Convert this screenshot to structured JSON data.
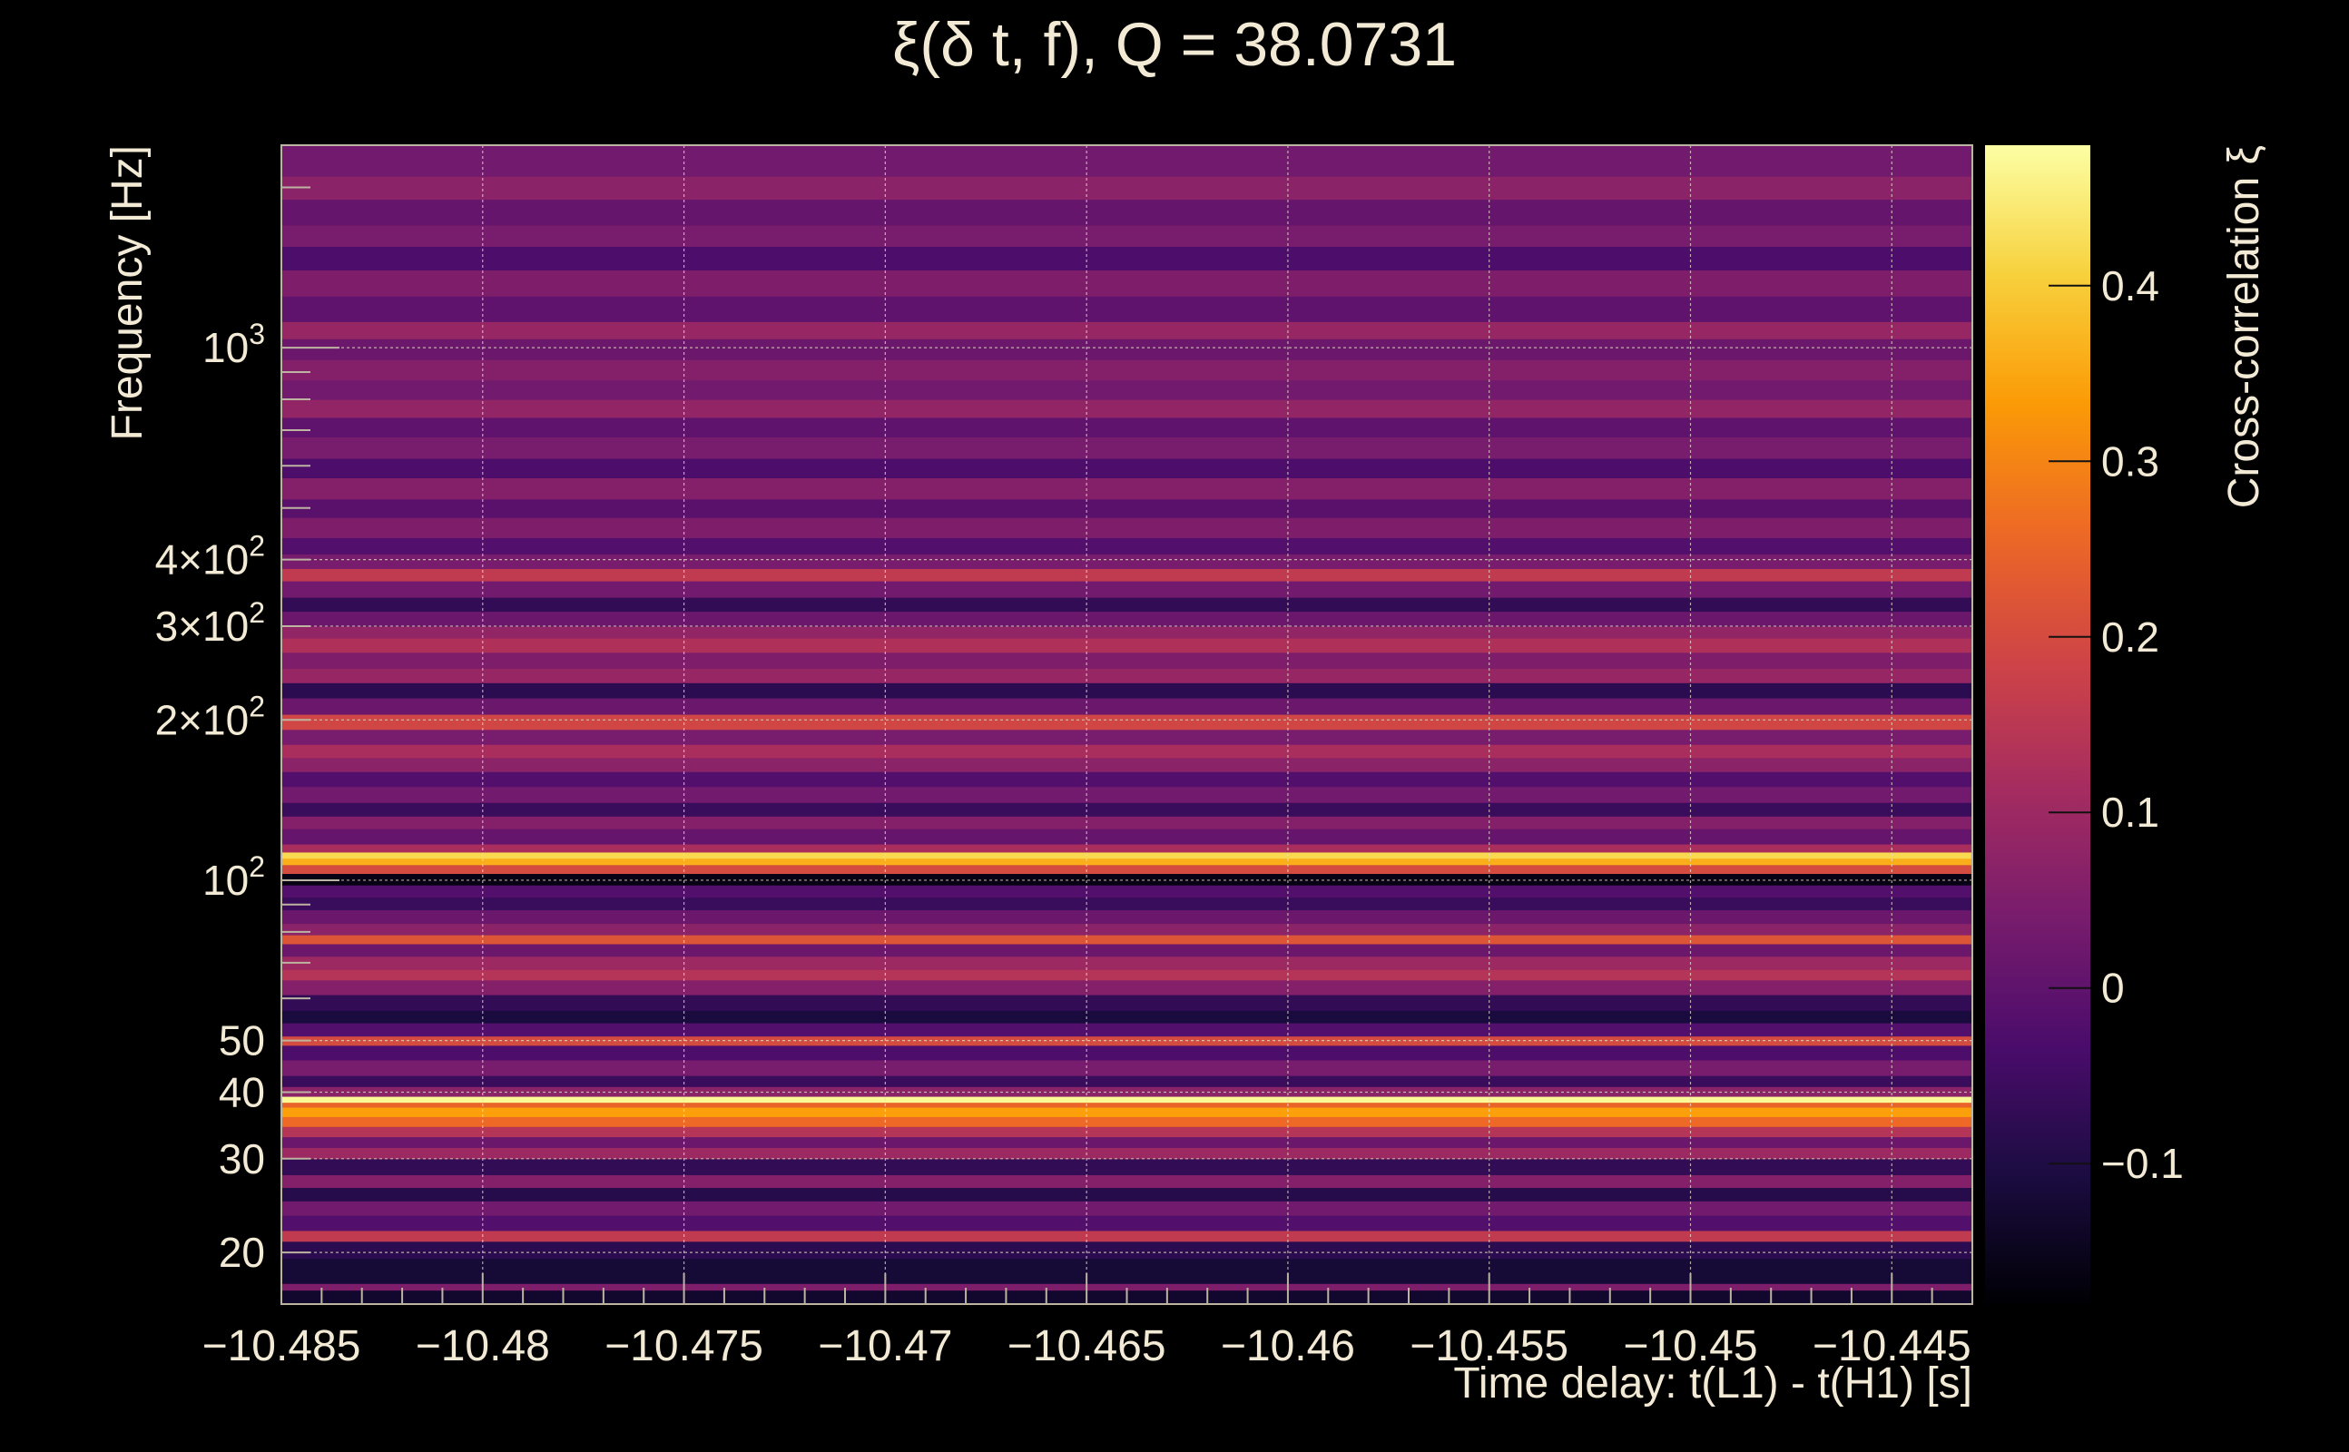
{
  "chart_data": {
    "type": "heatmap",
    "title": "ξ(δ t, f), Q = 38.0731",
    "xlabel": "Time delay: t(L1) - t(H1) [s]",
    "ylabel": "Frequency [Hz]",
    "colorbar_label": "Cross-correlation ξ",
    "xlim": [
      -10.485,
      -10.443
    ],
    "ylim": [
      16,
      2400
    ],
    "y_scale": "log",
    "grid": true,
    "colormap": [
      "#000004",
      "#1b0c41",
      "#4a0c6b",
      "#781c6d",
      "#a52c60",
      "#cf4446",
      "#ed6925",
      "#fb9b06",
      "#f7d13d",
      "#fcffa4"
    ],
    "x_ticks": [
      {
        "value": -10.485,
        "label": "−10.485"
      },
      {
        "value": -10.48,
        "label": "−10.48"
      },
      {
        "value": -10.475,
        "label": "−10.475"
      },
      {
        "value": -10.47,
        "label": "−10.47"
      },
      {
        "value": -10.465,
        "label": "−10.465"
      },
      {
        "value": -10.46,
        "label": "−10.46"
      },
      {
        "value": -10.455,
        "label": "−10.455"
      },
      {
        "value": -10.45,
        "label": "−10.45"
      },
      {
        "value": -10.445,
        "label": "−10.445"
      }
    ],
    "y_ticks": [
      {
        "value": 20,
        "label": "20"
      },
      {
        "value": 30,
        "label": "30"
      },
      {
        "value": 40,
        "label": "40"
      },
      {
        "value": 50,
        "label": "50"
      },
      {
        "value": 100,
        "base": "10",
        "exp": "2"
      },
      {
        "value": 200,
        "base": "2×10",
        "exp": "2"
      },
      {
        "value": 300,
        "base": "3×10",
        "exp": "2"
      },
      {
        "value": 400,
        "base": "4×10",
        "exp": "2"
      },
      {
        "value": 1000,
        "base": "10",
        "exp": "3"
      }
    ],
    "colorbar": {
      "range": [
        -0.18,
        0.48
      ],
      "ticks": [
        {
          "value": -0.1,
          "label": "−0.1"
        },
        {
          "value": 0,
          "label": "0"
        },
        {
          "value": 0.1,
          "label": "0.1"
        },
        {
          "value": 0.2,
          "label": "0.2"
        },
        {
          "value": 0.3,
          "label": "0.3"
        },
        {
          "value": 0.4,
          "label": "0.4"
        }
      ]
    },
    "bands": [
      {
        "f_low": 16,
        "f_high": 17,
        "value": -0.13
      },
      {
        "f_low": 17,
        "f_high": 17.5,
        "value": 0.05
      },
      {
        "f_low": 17.5,
        "f_high": 19.5,
        "value": -0.12
      },
      {
        "f_low": 19.5,
        "f_high": 21,
        "value": -0.08
      },
      {
        "f_low": 21,
        "f_high": 22,
        "value": 0.16
      },
      {
        "f_low": 22,
        "f_high": 23.5,
        "value": -0.02
      },
      {
        "f_low": 23.5,
        "f_high": 25,
        "value": 0.03
      },
      {
        "f_low": 25,
        "f_high": 26.5,
        "value": -0.09
      },
      {
        "f_low": 26.5,
        "f_high": 28,
        "value": 0.06
      },
      {
        "f_low": 28,
        "f_high": 30,
        "value": -0.07
      },
      {
        "f_low": 30,
        "f_high": 31.5,
        "value": 0.1
      },
      {
        "f_low": 31.5,
        "f_high": 33,
        "value": 0.02
      },
      {
        "f_low": 33,
        "f_high": 34.5,
        "value": 0.14
      },
      {
        "f_low": 34.5,
        "f_high": 36,
        "value": 0.26
      },
      {
        "f_low": 36,
        "f_high": 37.5,
        "value": 0.34
      },
      {
        "f_low": 37.5,
        "f_high": 38.3,
        "value": 0.25
      },
      {
        "f_low": 38.3,
        "f_high": 39.3,
        "value": 0.47
      },
      {
        "f_low": 39.3,
        "f_high": 41,
        "value": 0.07
      },
      {
        "f_low": 41,
        "f_high": 43,
        "value": -0.06
      },
      {
        "f_low": 43,
        "f_high": 46,
        "value": 0.04
      },
      {
        "f_low": 46,
        "f_high": 49,
        "value": -0.03
      },
      {
        "f_low": 49,
        "f_high": 51,
        "value": 0.2
      },
      {
        "f_low": 51,
        "f_high": 54,
        "value": -0.02
      },
      {
        "f_low": 54,
        "f_high": 57,
        "value": -0.11
      },
      {
        "f_low": 57,
        "f_high": 61,
        "value": -0.07
      },
      {
        "f_low": 61,
        "f_high": 65,
        "value": 0.06
      },
      {
        "f_low": 65,
        "f_high": 68,
        "value": 0.14
      },
      {
        "f_low": 68,
        "f_high": 72,
        "value": 0.1
      },
      {
        "f_low": 72,
        "f_high": 76,
        "value": 0.02
      },
      {
        "f_low": 76,
        "f_high": 79,
        "value": 0.22
      },
      {
        "f_low": 79,
        "f_high": 83,
        "value": 0.07
      },
      {
        "f_low": 83,
        "f_high": 88,
        "value": 0.02
      },
      {
        "f_low": 88,
        "f_high": 93,
        "value": -0.06
      },
      {
        "f_low": 93,
        "f_high": 98,
        "value": -0.02
      },
      {
        "f_low": 98,
        "f_high": 103,
        "value": -0.16
      },
      {
        "f_low": 103,
        "f_high": 107,
        "value": 0.2
      },
      {
        "f_low": 107,
        "f_high": 110,
        "value": 0.36
      },
      {
        "f_low": 110,
        "f_high": 113,
        "value": 0.42
      },
      {
        "f_low": 113,
        "f_high": 117,
        "value": 0.12
      },
      {
        "f_low": 117,
        "f_high": 125,
        "value": 0.01
      },
      {
        "f_low": 125,
        "f_high": 132,
        "value": 0.06
      },
      {
        "f_low": 132,
        "f_high": 140,
        "value": -0.06
      },
      {
        "f_low": 140,
        "f_high": 150,
        "value": 0.03
      },
      {
        "f_low": 150,
        "f_high": 160,
        "value": -0.02
      },
      {
        "f_low": 160,
        "f_high": 170,
        "value": 0.07
      },
      {
        "f_low": 170,
        "f_high": 180,
        "value": 0.12
      },
      {
        "f_low": 180,
        "f_high": 192,
        "value": 0.04
      },
      {
        "f_low": 192,
        "f_high": 205,
        "value": 0.19
      },
      {
        "f_low": 205,
        "f_high": 220,
        "value": 0.02
      },
      {
        "f_low": 220,
        "f_high": 235,
        "value": -0.08
      },
      {
        "f_low": 235,
        "f_high": 250,
        "value": 0.09
      },
      {
        "f_low": 250,
        "f_high": 268,
        "value": 0.05
      },
      {
        "f_low": 268,
        "f_high": 285,
        "value": 0.13
      },
      {
        "f_low": 285,
        "f_high": 300,
        "value": 0.08
      },
      {
        "f_low": 300,
        "f_high": 320,
        "value": 0.02
      },
      {
        "f_low": 320,
        "f_high": 340,
        "value": -0.07
      },
      {
        "f_low": 340,
        "f_high": 365,
        "value": 0.03
      },
      {
        "f_low": 365,
        "f_high": 385,
        "value": 0.16
      },
      {
        "f_low": 385,
        "f_high": 410,
        "value": 0.04
      },
      {
        "f_low": 410,
        "f_high": 440,
        "value": -0.02
      },
      {
        "f_low": 440,
        "f_high": 480,
        "value": 0.05
      },
      {
        "f_low": 480,
        "f_high": 520,
        "value": -0.01
      },
      {
        "f_low": 520,
        "f_high": 570,
        "value": 0.06
      },
      {
        "f_low": 570,
        "f_high": 620,
        "value": -0.03
      },
      {
        "f_low": 620,
        "f_high": 680,
        "value": 0.04
      },
      {
        "f_low": 680,
        "f_high": 740,
        "value": 0.0
      },
      {
        "f_low": 740,
        "f_high": 800,
        "value": 0.08
      },
      {
        "f_low": 800,
        "f_high": 870,
        "value": 0.03
      },
      {
        "f_low": 870,
        "f_high": 950,
        "value": 0.06
      },
      {
        "f_low": 950,
        "f_high": 1040,
        "value": 0.02
      },
      {
        "f_low": 1040,
        "f_high": 1120,
        "value": 0.09
      },
      {
        "f_low": 1120,
        "f_high": 1250,
        "value": 0.0
      },
      {
        "f_low": 1250,
        "f_high": 1400,
        "value": 0.05
      },
      {
        "f_low": 1400,
        "f_high": 1550,
        "value": -0.03
      },
      {
        "f_low": 1550,
        "f_high": 1700,
        "value": 0.04
      },
      {
        "f_low": 1700,
        "f_high": 1900,
        "value": 0.01
      },
      {
        "f_low": 1900,
        "f_high": 2100,
        "value": 0.07
      },
      {
        "f_low": 2100,
        "f_high": 2400,
        "value": 0.03
      }
    ]
  }
}
